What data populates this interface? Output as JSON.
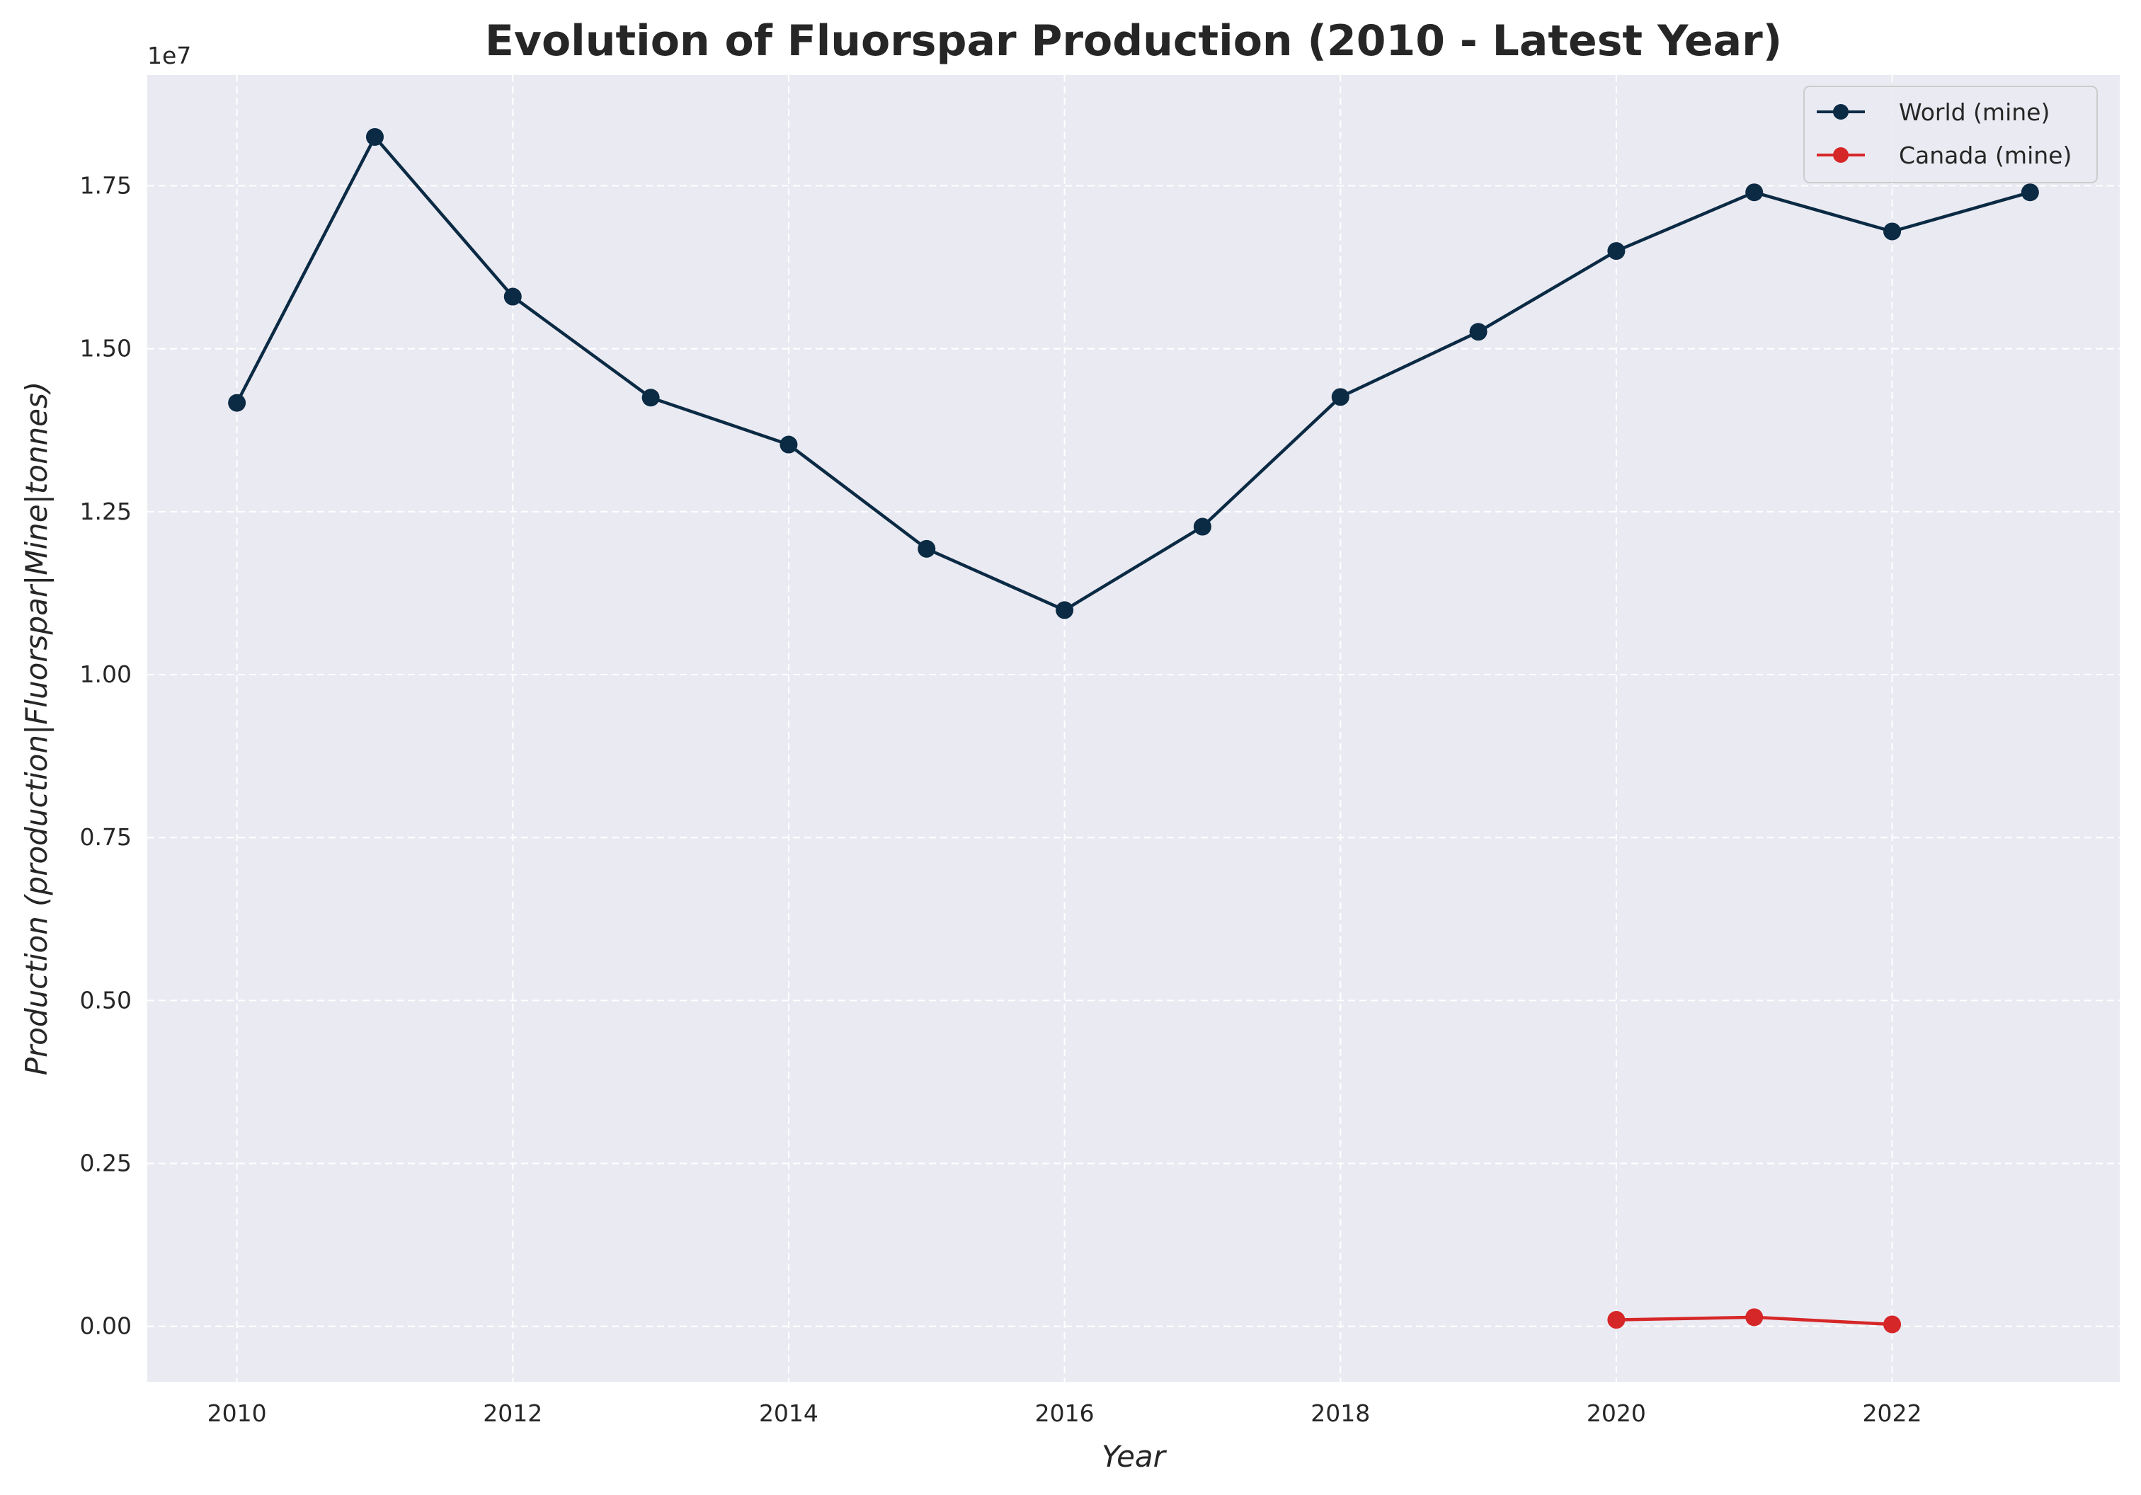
{
  "chart_data": {
    "type": "line",
    "title": "Evolution of Fluorspar Production (2010 - Latest Year)",
    "xlabel": "Year",
    "ylabel": "Production (production|Fluorspar|Mine|tonnes)",
    "y_offset_label": "1e7",
    "xlim": [
      2009.35,
      2023.65
    ],
    "ylim": [
      -850000,
      19200000
    ],
    "x_ticks": [
      2010,
      2012,
      2014,
      2016,
      2018,
      2020,
      2022
    ],
    "y_ticks": [
      0,
      2500000,
      5000000,
      7500000,
      10000000,
      12500000,
      15000000,
      17500000
    ],
    "y_tick_labels": [
      "0.00",
      "0.25",
      "0.50",
      "0.75",
      "1.00",
      "1.25",
      "1.50",
      "1.75"
    ],
    "grid": true,
    "background_color": "#eaeaf2",
    "legend_position": "top-right",
    "series": [
      {
        "name": "World (mine)",
        "color": "#0b2a44",
        "x": [
          2010,
          2011,
          2012,
          2013,
          2014,
          2015,
          2016,
          2017,
          2018,
          2019,
          2020,
          2021,
          2022,
          2023
        ],
        "values": [
          14170000,
          18250000,
          15800000,
          14250000,
          13530000,
          11930000,
          10990000,
          12270000,
          14260000,
          15260000,
          16500000,
          17400000,
          16800000,
          17400000
        ]
      },
      {
        "name": "Canada (mine)",
        "color": "#d62728",
        "x": [
          2020,
          2021,
          2022
        ],
        "values": [
          100000,
          140000,
          30000
        ]
      }
    ]
  }
}
